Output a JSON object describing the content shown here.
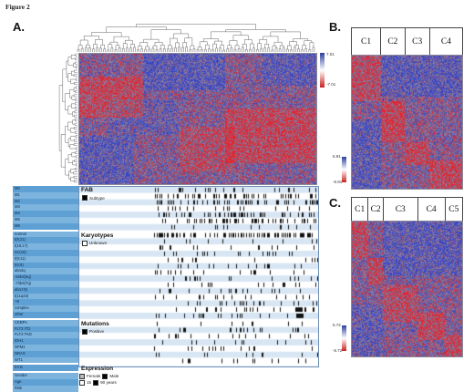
{
  "figure_title": "Figure 2",
  "panels": {
    "a": {
      "label": "A.",
      "scale_max": "7.01",
      "scale_min": "-7.01",
      "annotation_groups": [
        {
          "name": "FAB",
          "legend": [
            {
              "label": "Subtype",
              "color": "#000000"
            }
          ],
          "tracks": [
            "M0",
            "M1",
            "M2",
            "M3",
            "M4",
            "M5",
            "M6"
          ]
        },
        {
          "name": "Karyotypes",
          "legend": [
            {
              "label": "Unknown",
              "color": "#ffffff"
            }
          ],
          "tracks": [
            "normal",
            "t(8;21)",
            "t(15;17)",
            "inv(16)",
            "t(9;11)",
            "t(6;9)",
            "abn3q",
            "-5/del(5q)",
            "-7/del(7q)",
            "abn17p",
            "t(11q23)",
            "+8",
            "complex",
            "other"
          ]
        },
        {
          "name": "Mutations",
          "legend": [
            {
              "label": "Positive",
              "color": "#000000"
            }
          ],
          "tracks": [
            "CEBPA",
            "FLT3 ITD",
            "FLT3 TKD",
            "IDH1",
            "NPM1",
            "NRAS",
            "WT1"
          ]
        },
        {
          "name": "Expression",
          "legend": [],
          "tracks": [
            "EVI1"
          ]
        }
      ],
      "demographics": {
        "tracks": [
          "Gender",
          "Age",
          "Risk"
        ],
        "legend": [
          {
            "label": "Female",
            "color": "#bbbbbb"
          },
          {
            "label": "Male",
            "color": "#000000"
          },
          {
            "label": "15",
            "color": "#ffffff"
          },
          {
            "label": "90 years",
            "color": "#000000"
          }
        ]
      }
    },
    "b": {
      "label": "B.",
      "clusters": [
        "C1",
        "C2",
        "C3",
        "C4"
      ],
      "scale_max": "5.91",
      "scale_min": "-5.91"
    },
    "c": {
      "label": "C.",
      "clusters": [
        "C1",
        "C2",
        "C3",
        "C4",
        "C5"
      ],
      "scale_max": "5.72",
      "scale_min": "-5.72"
    }
  }
}
